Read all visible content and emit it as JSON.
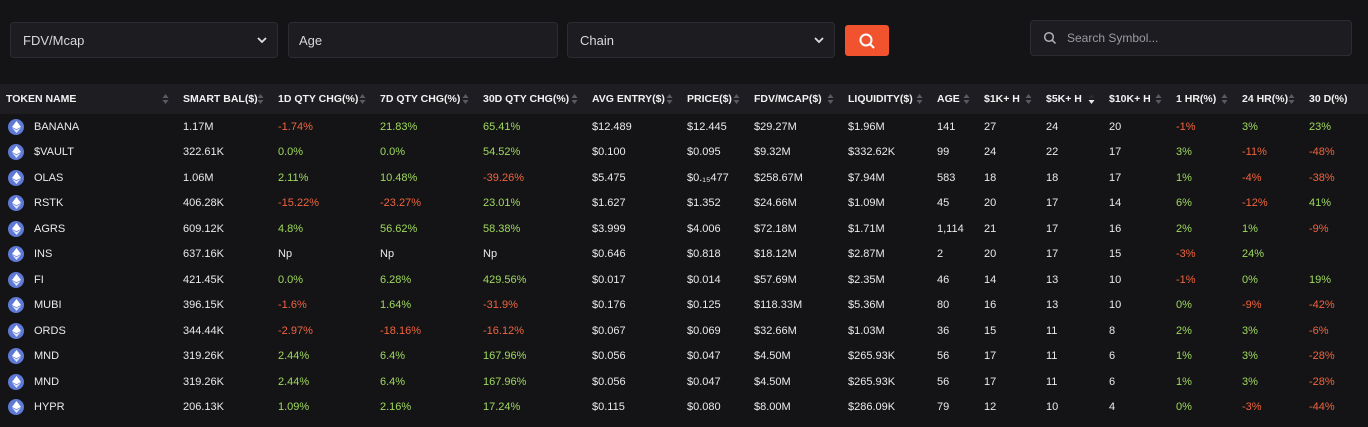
{
  "filters": {
    "fdv_label": "FDV/Mcap",
    "age_label": "Age",
    "chain_label": "Chain",
    "search_placeholder": "Search Symbol..."
  },
  "colors": {
    "negative": "#f0643c",
    "positive": "#9fd85c",
    "accent": "#f0532e",
    "chain_icon": "#5f7ad6"
  },
  "table": {
    "headers": [
      "TOKEN NAME",
      "SMART BAL($)",
      "1D QTY CHG(%)",
      "7D QTY CHG(%)",
      "30D QTY CHG(%)",
      "AVG ENTRY($)",
      "PRICE($)",
      "FDV/MCAP($)",
      "LIQUIDITY($)",
      "AGE",
      "$1K+ H",
      "$5K+ H",
      "$10K+ H",
      "1 HR(%)",
      "24 HR(%)",
      "30 D(%)"
    ],
    "rows": [
      [
        "BANANA",
        "1.17M",
        "-1.74%",
        "21.83%",
        "65.41%",
        "$12.489",
        "$12.445",
        "$29.27M",
        "$1.96M",
        "141",
        "27",
        "24",
        "20",
        "-1%",
        "3%",
        "23%"
      ],
      [
        "$VAULT",
        "322.61K",
        "0.0%",
        "0.0%",
        "54.52%",
        "$0.100",
        "$0.095",
        "$9.32M",
        "$332.62K",
        "99",
        "24",
        "22",
        "17",
        "3%",
        "-11%",
        "-48%"
      ],
      [
        "OLAS",
        "1.06M",
        "2.11%",
        "10.48%",
        "-39.26%",
        "$5.475",
        "$0.₁₅477",
        "$258.67M",
        "$7.94M",
        "583",
        "18",
        "18",
        "17",
        "1%",
        "-4%",
        "-38%"
      ],
      [
        "RSTK",
        "406.28K",
        "-15.22%",
        "-23.27%",
        "23.01%",
        "$1.627",
        "$1.352",
        "$24.66M",
        "$1.09M",
        "45",
        "20",
        "17",
        "14",
        "6%",
        "-12%",
        "41%"
      ],
      [
        "AGRS",
        "609.12K",
        "4.8%",
        "56.62%",
        "58.38%",
        "$3.999",
        "$4.006",
        "$72.18M",
        "$1.71M",
        "1,114",
        "21",
        "17",
        "16",
        "2%",
        "1%",
        "-9%"
      ],
      [
        "INS",
        "637.16K",
        "Np",
        "Np",
        "Np",
        "$0.646",
        "$0.818",
        "$18.12M",
        "$2.87M",
        "2",
        "20",
        "17",
        "15",
        "-3%",
        "24%",
        ""
      ],
      [
        "FI",
        "421.45K",
        "0.0%",
        "6.28%",
        "429.56%",
        "$0.017",
        "$0.014",
        "$57.69M",
        "$2.35M",
        "46",
        "14",
        "13",
        "10",
        "-1%",
        "0%",
        "19%"
      ],
      [
        "MUBI",
        "396.15K",
        "-1.6%",
        "1.64%",
        "-31.9%",
        "$0.176",
        "$0.125",
        "$118.33M",
        "$5.36M",
        "80",
        "16",
        "13",
        "10",
        "0%",
        "-9%",
        "-42%"
      ],
      [
        "ORDS",
        "344.44K",
        "-2.97%",
        "-18.16%",
        "-16.12%",
        "$0.067",
        "$0.069",
        "$32.66M",
        "$1.03M",
        "36",
        "15",
        "11",
        "8",
        "2%",
        "3%",
        "-6%"
      ],
      [
        "MND",
        "319.26K",
        "2.44%",
        "6.4%",
        "167.96%",
        "$0.056",
        "$0.047",
        "$4.50M",
        "$265.93K",
        "56",
        "17",
        "11",
        "6",
        "1%",
        "3%",
        "-28%"
      ],
      [
        "MND",
        "319.26K",
        "2.44%",
        "6.4%",
        "167.96%",
        "$0.056",
        "$0.047",
        "$4.50M",
        "$265.93K",
        "56",
        "17",
        "11",
        "6",
        "1%",
        "3%",
        "-28%"
      ],
      [
        "HYPR",
        "206.13K",
        "1.09%",
        "2.16%",
        "17.24%",
        "$0.115",
        "$0.080",
        "$8.00M",
        "$286.09K",
        "79",
        "12",
        "10",
        "4",
        "0%",
        "-3%",
        "-44%"
      ]
    ]
  }
}
